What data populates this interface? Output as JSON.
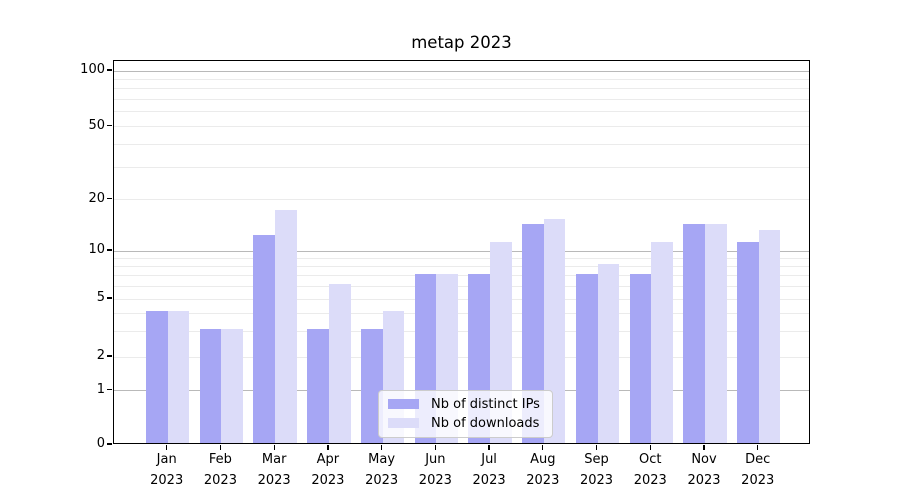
{
  "chart_data": {
    "type": "bar",
    "title": "metap 2023",
    "months": [
      "Jan",
      "Feb",
      "Mar",
      "Apr",
      "May",
      "Jun",
      "Jul",
      "Aug",
      "Sep",
      "Oct",
      "Nov",
      "Dec"
    ],
    "year_label": "2023",
    "series": [
      {
        "name": "Nb of distinct IPs",
        "color": "#a6a6f4",
        "values": [
          4,
          3,
          12,
          3,
          3,
          7,
          7,
          14,
          7,
          7,
          14,
          11
        ]
      },
      {
        "name": "Nb of downloads",
        "color": "#dcdcf9",
        "values": [
          4,
          3,
          17,
          6,
          4,
          7,
          11,
          15,
          8,
          11,
          14,
          13
        ]
      }
    ],
    "yscale": "symlog",
    "ylim": [
      0,
      130
    ],
    "y_tick_values": [
      0,
      1,
      2,
      5,
      10,
      20,
      50,
      100
    ],
    "y_tick_labels": [
      "0",
      "1",
      "2",
      "5",
      "10",
      "20",
      "50",
      "100"
    ],
    "y_major_gridlines": [
      1,
      10,
      100
    ],
    "y_minor_gridlines": [
      2,
      3,
      4,
      5,
      6,
      7,
      8,
      9,
      20,
      30,
      40,
      50,
      60,
      70,
      80,
      90
    ],
    "grid": true,
    "legend_position": "lower center",
    "colors": {
      "major_grid": "#b9b9b9",
      "minor_grid": "#ebebeb",
      "axis": "#000000",
      "legend_border": "#cccccc"
    }
  }
}
